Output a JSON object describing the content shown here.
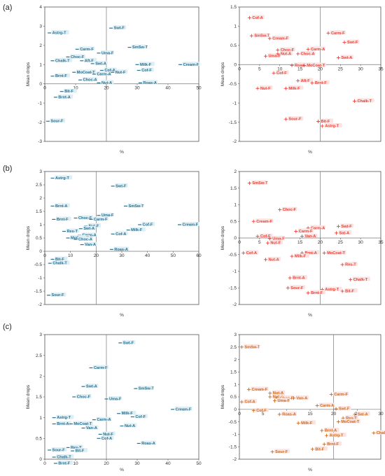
{
  "panel_labels": [
    "(a)",
    "(b)",
    "(c)"
  ],
  "colors": {
    "blue": "#2c6f8e",
    "red": "#e8413a",
    "orange": "#c96a1f",
    "label_bg": "#ddeff5",
    "label_bg_red": "#fbe3e1"
  },
  "chart_data": [
    {
      "panel": "(a)",
      "position": "left",
      "type": "scatter",
      "marker": "dash",
      "color": "blue",
      "xlabel": "%",
      "ylabel": "Mean drops",
      "xlim": [
        0,
        50
      ],
      "ylim": [
        -3,
        4
      ],
      "xticks": [
        0,
        10,
        20,
        30,
        40,
        50
      ],
      "yticks": [
        -3,
        -2,
        -1,
        0,
        1,
        2,
        3,
        4
      ],
      "ref_x": 20,
      "ref_y": 0,
      "points": [
        {
          "label": "Astrg-T",
          "x": 1.5,
          "y": 2.65
        },
        {
          "label": "Swt-F",
          "x": 21.5,
          "y": 2.9
        },
        {
          "label": "SmSw-T",
          "x": 27.5,
          "y": 1.9
        },
        {
          "label": "Carm-F",
          "x": 10.5,
          "y": 1.8
        },
        {
          "label": "Uma-F",
          "x": 17.5,
          "y": 1.6
        },
        {
          "label": "Choc-F",
          "x": 7.5,
          "y": 1.4
        },
        {
          "label": "Chalk-T",
          "x": 2.5,
          "y": 1.2
        },
        {
          "label": "Aft-F",
          "x": 12.0,
          "y": 1.2
        },
        {
          "label": "Swt-A",
          "x": 15.5,
          "y": 1.05
        },
        {
          "label": "Cream-F",
          "x": 44.0,
          "y": 1.0
        },
        {
          "label": "Milk-F",
          "x": 30.0,
          "y": 1.0
        },
        {
          "label": "Cof-F",
          "x": 30.5,
          "y": 0.7
        },
        {
          "label": "MoCoat-T",
          "x": 9.5,
          "y": 0.6
        },
        {
          "label": "Cof-A",
          "x": 18.5,
          "y": 0.7
        },
        {
          "label": "Carm-A",
          "x": 16.0,
          "y": 0.5
        },
        {
          "label": "Nut-F",
          "x": 22.0,
          "y": 0.6
        },
        {
          "label": "Brnt-F",
          "x": 2.5,
          "y": 0.4
        },
        {
          "label": "Choc-A",
          "x": 11.5,
          "y": 0.2
        },
        {
          "label": "Nut-A",
          "x": 17.5,
          "y": 0.05
        },
        {
          "label": "Roas-A",
          "x": 31.0,
          "y": 0.05
        },
        {
          "label": "Bit-F",
          "x": 5.5,
          "y": -0.4
        },
        {
          "label": "Brnt-A",
          "x": 3.5,
          "y": -0.7
        },
        {
          "label": "Sour-F",
          "x": 1.0,
          "y": -1.95
        }
      ]
    },
    {
      "panel": "(a)",
      "position": "right",
      "type": "scatter",
      "marker": "plus",
      "color": "red",
      "xlabel": "%",
      "ylabel": "Mean drops",
      "xlim": [
        0,
        35
      ],
      "ylim": [
        -2,
        1.5
      ],
      "xticks": [
        0,
        5,
        10,
        15,
        20,
        25,
        30,
        35
      ],
      "yticks": [
        -2,
        -1.5,
        -1,
        -0.5,
        0,
        0.5,
        1,
        1.5
      ],
      "ref_x": 20,
      "ref_y": 0,
      "points": [
        {
          "label": "Cof-A",
          "x": 2.5,
          "y": 1.22
        },
        {
          "label": "SmSw-T",
          "x": 3.0,
          "y": 0.75
        },
        {
          "label": "Cream-F",
          "x": 7.5,
          "y": 0.68
        },
        {
          "label": "Carm-F",
          "x": 22.0,
          "y": 0.82
        },
        {
          "label": "Swt-F",
          "x": 26.0,
          "y": 0.58
        },
        {
          "label": "Carm-A",
          "x": 17.0,
          "y": 0.4
        },
        {
          "label": "Choc-F",
          "x": 9.5,
          "y": 0.38
        },
        {
          "label": "Uma-F",
          "x": 6.5,
          "y": 0.22
        },
        {
          "label": "Nut-A",
          "x": 9.5,
          "y": 0.28
        },
        {
          "label": "Choc-A",
          "x": 14.5,
          "y": 0.28
        },
        {
          "label": "Swt-A",
          "x": 24.5,
          "y": 0.18
        },
        {
          "label": "Roas-A",
          "x": 13.0,
          "y": -0.02
        },
        {
          "label": "MoCoat-T",
          "x": 16.0,
          "y": -0.02
        },
        {
          "label": "Cof-F",
          "x": 8.5,
          "y": -0.22
        },
        {
          "label": "Aft-F",
          "x": 14.5,
          "y": -0.42
        },
        {
          "label": "Brnt-F",
          "x": 18.0,
          "y": -0.48
        },
        {
          "label": "Nut-F",
          "x": 4.5,
          "y": -0.62
        },
        {
          "label": "Milk-F",
          "x": 11.5,
          "y": -0.62
        },
        {
          "label": "Chalk-T",
          "x": 28.5,
          "y": -0.95
        },
        {
          "label": "Sour-F",
          "x": 11.5,
          "y": -1.42
        },
        {
          "label": "Bit-F",
          "x": 19.5,
          "y": -1.48
        },
        {
          "label": "Astrg-T",
          "x": 20.5,
          "y": -1.6
        }
      ]
    },
    {
      "panel": "(b)",
      "position": "left",
      "type": "scatter",
      "marker": "dash",
      "color": "blue",
      "xlabel": "%",
      "ylabel": "Mean drops",
      "xlim": [
        0,
        60
      ],
      "ylim": [
        -2,
        3
      ],
      "xticks": [
        0,
        10,
        20,
        30,
        40,
        50,
        60
      ],
      "yticks": [
        -2,
        -1.5,
        -1,
        -0.5,
        0,
        0.5,
        1,
        1.5,
        2,
        2.5,
        3
      ],
      "ref_x": 20,
      "ref_y": 0,
      "points": [
        {
          "label": "Astrg-T",
          "x": 3.0,
          "y": 2.75
        },
        {
          "label": "Swt-F",
          "x": 26.5,
          "y": 2.45
        },
        {
          "label": "Brnt-A",
          "x": 3.0,
          "y": 1.7
        },
        {
          "label": "SmSw-T",
          "x": 31.5,
          "y": 1.7
        },
        {
          "label": "Uma-F",
          "x": 21.0,
          "y": 1.35
        },
        {
          "label": "Brnt-F",
          "x": 3.5,
          "y": 1.2
        },
        {
          "label": "Choc-F",
          "x": 12.0,
          "y": 1.25
        },
        {
          "label": "Carm-F",
          "x": 18.0,
          "y": 1.2
        },
        {
          "label": "Cof-F",
          "x": 37.0,
          "y": 1.0
        },
        {
          "label": "Cream-F",
          "x": 52.5,
          "y": 1.0
        },
        {
          "label": "Nut-F",
          "x": 16.0,
          "y": 0.95
        },
        {
          "label": "Swt-A",
          "x": 14.0,
          "y": 0.85
        },
        {
          "label": "Milk-F",
          "x": 32.5,
          "y": 0.8
        },
        {
          "label": "Res-T",
          "x": 7.5,
          "y": 0.75
        },
        {
          "label": "Cof-A",
          "x": 26.5,
          "y": 0.65
        },
        {
          "label": "Carm-A",
          "x": 13.5,
          "y": 0.6
        },
        {
          "label": "MoCoat-T",
          "x": 9.0,
          "y": 0.5
        },
        {
          "label": "Choc-A",
          "x": 12.0,
          "y": 0.45
        },
        {
          "label": "Van-A",
          "x": 14.5,
          "y": 0.25
        },
        {
          "label": "Roas-A",
          "x": 26.0,
          "y": 0.07
        },
        {
          "label": "Bit-F",
          "x": 3.0,
          "y": -0.3
        },
        {
          "label": "Chalk-T",
          "x": 2.0,
          "y": -0.45
        },
        {
          "label": "Sour-F",
          "x": 1.5,
          "y": -1.65
        }
      ]
    },
    {
      "panel": "(b)",
      "position": "right",
      "type": "scatter",
      "marker": "plus",
      "color": "red",
      "xlabel": "%",
      "ylabel": "Mean drops",
      "xlim": [
        0,
        35
      ],
      "ylim": [
        -2,
        2
      ],
      "xticks": [
        0,
        5,
        10,
        15,
        20,
        25,
        30,
        35
      ],
      "yticks": [
        -2,
        -1.5,
        -1,
        -0.5,
        0,
        0.5,
        1,
        1.5,
        2
      ],
      "ref_x": 20,
      "ref_y": 0,
      "points": [
        {
          "label": "SmSw-T",
          "x": 2.5,
          "y": 1.65
        },
        {
          "label": "Choc-F",
          "x": 10.0,
          "y": 0.85
        },
        {
          "label": "Cream-F",
          "x": 3.5,
          "y": 0.5
        },
        {
          "label": "Carm-A",
          "x": 17.0,
          "y": 0.3
        },
        {
          "label": "Swt-F",
          "x": 24.5,
          "y": 0.35
        },
        {
          "label": "Carm-F",
          "x": 14.0,
          "y": 0.2
        },
        {
          "label": "Sat-A",
          "x": 24.0,
          "y": 0.15
        },
        {
          "label": "Van-A",
          "x": 15.5,
          "y": 0.05
        },
        {
          "label": "Cof-F",
          "x": 4.5,
          "y": 0.05
        },
        {
          "label": "Uma-F",
          "x": 7.5,
          "y": -0.02
        },
        {
          "label": "Nut-F",
          "x": 7.0,
          "y": -0.15
        },
        {
          "label": "Cof-A",
          "x": 1.0,
          "y": -0.45
        },
        {
          "label": "Nut-A",
          "x": 6.5,
          "y": -0.65
        },
        {
          "label": "Brnt-A",
          "x": 15.5,
          "y": -0.45
        },
        {
          "label": "MoCoat-T",
          "x": 21.0,
          "y": -0.45
        },
        {
          "label": "Milk-F",
          "x": 13.0,
          "y": -0.55
        },
        {
          "label": "Res-T",
          "x": 25.5,
          "y": -0.8
        },
        {
          "label": "Brnt-A",
          "x": 12.5,
          "y": -1.2
        },
        {
          "label": "Chalk-T",
          "x": 27.5,
          "y": -1.25
        },
        {
          "label": "Sour-F",
          "x": 12.0,
          "y": -1.5
        },
        {
          "label": "Astrg-T",
          "x": 20.5,
          "y": -1.55
        },
        {
          "label": "Bit-F",
          "x": 25.5,
          "y": -1.6
        },
        {
          "label": "Brnt-F",
          "x": 17.0,
          "y": -1.65
        }
      ]
    },
    {
      "panel": "(c)",
      "position": "left",
      "type": "scatter",
      "marker": "dash",
      "color": "blue",
      "xlabel": "%",
      "ylabel": "Mean drops",
      "xlim": [
        0,
        50
      ],
      "ylim": [
        0,
        3
      ],
      "xticks": [
        0,
        10,
        20,
        30,
        40,
        50
      ],
      "yticks": [
        0,
        0.5,
        1,
        1.5,
        2,
        2.5,
        3
      ],
      "ref_x": 20,
      "ref_y": null,
      "points": [
        {
          "label": "Swt-F",
          "x": 24.5,
          "y": 2.8
        },
        {
          "label": "Carm-F",
          "x": 15.0,
          "y": 2.2
        },
        {
          "label": "Swt-A",
          "x": 12.5,
          "y": 1.75
        },
        {
          "label": "SmSw-T",
          "x": 29.5,
          "y": 1.7
        },
        {
          "label": "Choc-F",
          "x": 9.5,
          "y": 1.5
        },
        {
          "label": "Uma-F",
          "x": 20.0,
          "y": 1.45
        },
        {
          "label": "Cream-F",
          "x": 41.5,
          "y": 1.2
        },
        {
          "label": "Milk-F",
          "x": 24.0,
          "y": 1.1
        },
        {
          "label": "Cof-F",
          "x": 28.5,
          "y": 1.02
        },
        {
          "label": "Astrg-T",
          "x": 3.0,
          "y": 1.0
        },
        {
          "label": "Carm-A",
          "x": 16.0,
          "y": 0.95
        },
        {
          "label": "Brnt-A",
          "x": 3.0,
          "y": 0.85
        },
        {
          "label": "MoCoat-T",
          "x": 8.5,
          "y": 0.85
        },
        {
          "label": "Nut-A",
          "x": 25.0,
          "y": 0.8
        },
        {
          "label": "Van-A",
          "x": 12.5,
          "y": 0.75
        },
        {
          "label": "Nut-F",
          "x": 18.0,
          "y": 0.6
        },
        {
          "label": "Cof-A",
          "x": 17.5,
          "y": 0.5
        },
        {
          "label": "Roas-A",
          "x": 30.5,
          "y": 0.38
        },
        {
          "label": "Res-T",
          "x": 7.5,
          "y": 0.28
        },
        {
          "label": "Sour-F",
          "x": 1.5,
          "y": 0.22
        },
        {
          "label": "Bit-F",
          "x": 9.0,
          "y": 0.2
        },
        {
          "label": "Chalk-T",
          "x": 3.0,
          "y": 0.05
        },
        {
          "label": "Brnt-F",
          "x": 3.5,
          "y": -0.1
        }
      ]
    },
    {
      "panel": "(c)",
      "position": "right",
      "type": "scatter",
      "marker": "plus",
      "color": "orange",
      "xlabel": "%",
      "ylabel": "Mean drops",
      "xlim": [
        0,
        30
      ],
      "ylim": [
        -2,
        3
      ],
      "xticks": [
        0,
        5,
        10,
        15,
        20,
        25,
        30
      ],
      "yticks": [
        -2,
        -1.5,
        -1,
        -0.5,
        0,
        0.5,
        1,
        1.5,
        2,
        2.5,
        3
      ],
      "ref_x": 20,
      "ref_y": 0,
      "points": [
        {
          "label": "SmSw-T",
          "x": 0.5,
          "y": 2.5
        },
        {
          "label": "Cream-F",
          "x": 2.0,
          "y": 0.8
        },
        {
          "label": "Nut-A",
          "x": 6.5,
          "y": 0.65
        },
        {
          "label": "Nut-F",
          "x": 6.5,
          "y": 0.5
        },
        {
          "label": "Choc-F",
          "x": 8.0,
          "y": 0.45
        },
        {
          "label": "Uma-F",
          "x": 7.5,
          "y": 0.35
        },
        {
          "label": "Van-A",
          "x": 11.5,
          "y": 0.45
        },
        {
          "label": "Carm-F",
          "x": 19.5,
          "y": 0.6
        },
        {
          "label": "Cof-A",
          "x": 0.5,
          "y": 0.3
        },
        {
          "label": "Carm-A",
          "x": 16.5,
          "y": 0.15
        },
        {
          "label": "Swt-F",
          "x": 20.5,
          "y": 0.02
        },
        {
          "label": "Cof-F",
          "x": 3.0,
          "y": -0.05
        },
        {
          "label": "Roas-A",
          "x": 8.5,
          "y": -0.2
        },
        {
          "label": "Res-T",
          "x": 22.0,
          "y": -0.35
        },
        {
          "label": "Sat-A",
          "x": 24.5,
          "y": -0.2
        },
        {
          "label": "MoCoat-T",
          "x": 21.0,
          "y": -0.5
        },
        {
          "label": "Milk-F",
          "x": 12.5,
          "y": -0.55
        },
        {
          "label": "Brnt-A",
          "x": 17.5,
          "y": -0.85
        },
        {
          "label": "Chalk-T",
          "x": 28.5,
          "y": -0.95
        },
        {
          "label": "Astrg-T",
          "x": 18.5,
          "y": -1.05
        },
        {
          "label": "Brnt-F",
          "x": 18.0,
          "y": -1.4
        },
        {
          "label": "Bit-F",
          "x": 15.5,
          "y": -1.6
        },
        {
          "label": "Sour-F",
          "x": 7.0,
          "y": -1.7
        }
      ]
    }
  ]
}
